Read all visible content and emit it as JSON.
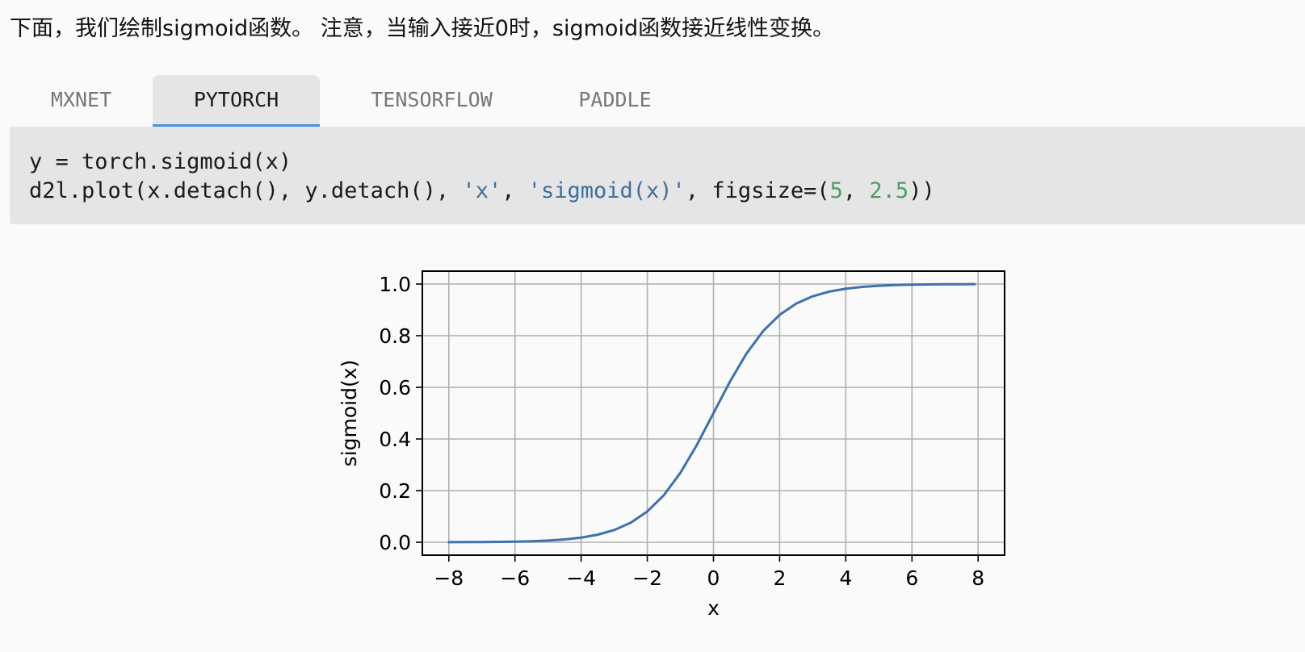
{
  "intro_text": "下面，我们绘制sigmoid函数。 注意，当输入接近0时，sigmoid函数接近线性变换。",
  "tabs": [
    {
      "label": "MXNET",
      "active": false
    },
    {
      "label": "PYTORCH",
      "active": true
    },
    {
      "label": "TENSORFLOW",
      "active": false
    },
    {
      "label": "PADDLE",
      "active": false
    }
  ],
  "code": {
    "line1": "y = torch.sigmoid(x)",
    "line2": {
      "part1": "d2l.plot(x.detach(), y.detach(), ",
      "str1": "'x'",
      "sep1": ", ",
      "str2": "'sigmoid(x)'",
      "part2": ", figsize=(",
      "num1": "5",
      "sep2": ", ",
      "num2": "2.5",
      "part3": "))"
    }
  },
  "colors": {
    "line": "#3d72ad",
    "grid": "#b0b0b0",
    "string": "#3e6e9e",
    "number": "#4e9a68",
    "tab_underline": "#4b90e2"
  },
  "chart_data": {
    "type": "line",
    "title": "",
    "xlabel": "x",
    "ylabel": "sigmoid(x)",
    "xlim": [
      -8.8,
      8.8
    ],
    "ylim": [
      -0.05,
      1.05
    ],
    "xticks": [
      -8,
      -6,
      -4,
      -2,
      0,
      2,
      4,
      6,
      8
    ],
    "xtick_labels": [
      "−8",
      "−6",
      "−4",
      "−2",
      "0",
      "2",
      "4",
      "6",
      "8"
    ],
    "yticks": [
      0.0,
      0.2,
      0.4,
      0.6,
      0.8,
      1.0
    ],
    "ytick_labels": [
      "0.0",
      "0.2",
      "0.4",
      "0.6",
      "0.8",
      "1.0"
    ],
    "grid": true,
    "series": [
      {
        "x": [
          -8,
          -7.5,
          -7,
          -6.5,
          -6,
          -5.5,
          -5,
          -4.5,
          -4,
          -3.5,
          -3,
          -2.5,
          -2,
          -1.5,
          -1,
          -0.5,
          0,
          0.5,
          1,
          1.5,
          2,
          2.5,
          3,
          3.5,
          4,
          4.5,
          5,
          5.5,
          6,
          6.5,
          7,
          7.5,
          7.9
        ],
        "y": [
          0.0003,
          0.0006,
          0.0009,
          0.0015,
          0.0025,
          0.0041,
          0.0067,
          0.011,
          0.018,
          0.0293,
          0.0474,
          0.0759,
          0.1192,
          0.1824,
          0.2689,
          0.3775,
          0.5,
          0.6225,
          0.7311,
          0.8176,
          0.8808,
          0.9241,
          0.9526,
          0.9707,
          0.982,
          0.989,
          0.9933,
          0.9959,
          0.9975,
          0.9985,
          0.9991,
          0.9994,
          0.9996
        ]
      }
    ]
  }
}
